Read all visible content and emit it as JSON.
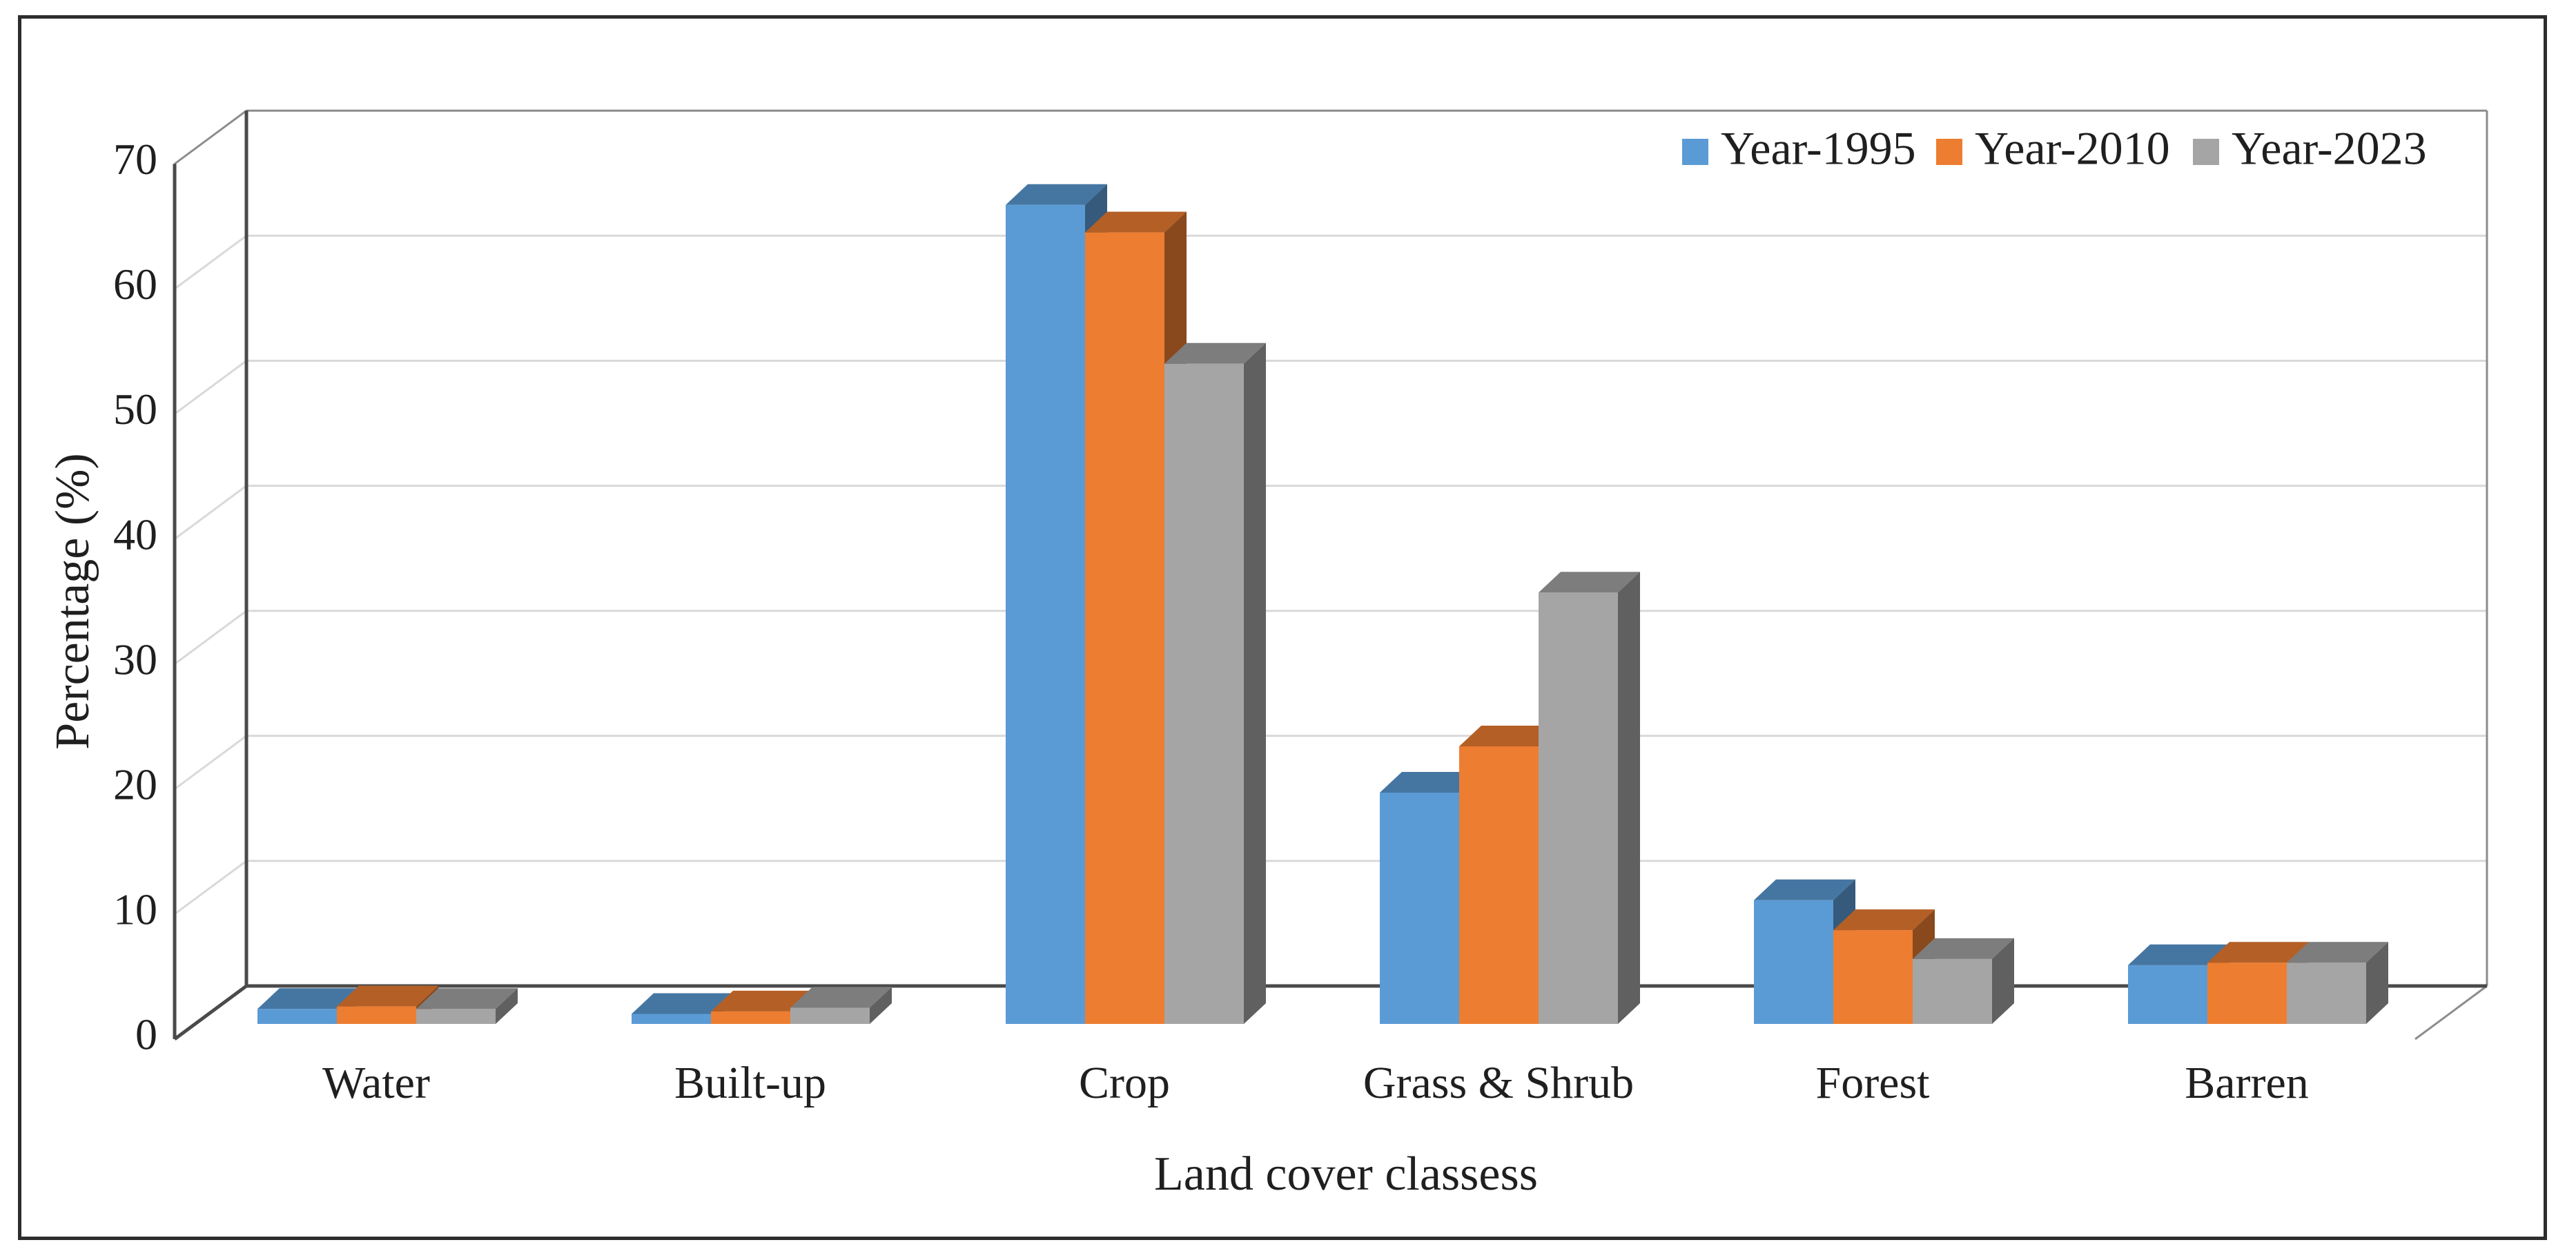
{
  "chart_data": {
    "type": "bar",
    "variant": "3d-clustered-column",
    "title": "",
    "xlabel": "Land cover classess",
    "ylabel": "Percentage (%)",
    "categories": [
      "Water",
      "Built-up",
      "Crop",
      "Grass & Shrub",
      "Forest",
      "Barren"
    ],
    "series": [
      {
        "name": "Year-1995",
        "color": "#5B9BD5",
        "values": [
          1.2,
          0.8,
          65.5,
          18.5,
          9.9,
          4.7
        ]
      },
      {
        "name": "Year-2010",
        "color": "#ED7D31",
        "values": [
          1.4,
          1.0,
          63.3,
          22.2,
          7.5,
          4.9
        ]
      },
      {
        "name": "Year-2023",
        "color": "#A5A5A5",
        "values": [
          1.2,
          1.3,
          52.8,
          34.5,
          5.2,
          4.9
        ]
      }
    ],
    "y_ticks": [
      0,
      10,
      20,
      30,
      40,
      50,
      60,
      70
    ],
    "ylim": [
      0,
      70
    ],
    "grid": true,
    "legend_position": "top-right",
    "colors": {
      "grid": "#D9D9D9",
      "wall_edge": "#8C8C8C",
      "axis_line": "#4A4A4A",
      "text": "#1F1F1F",
      "frame_border": "#2D2D2D"
    }
  }
}
